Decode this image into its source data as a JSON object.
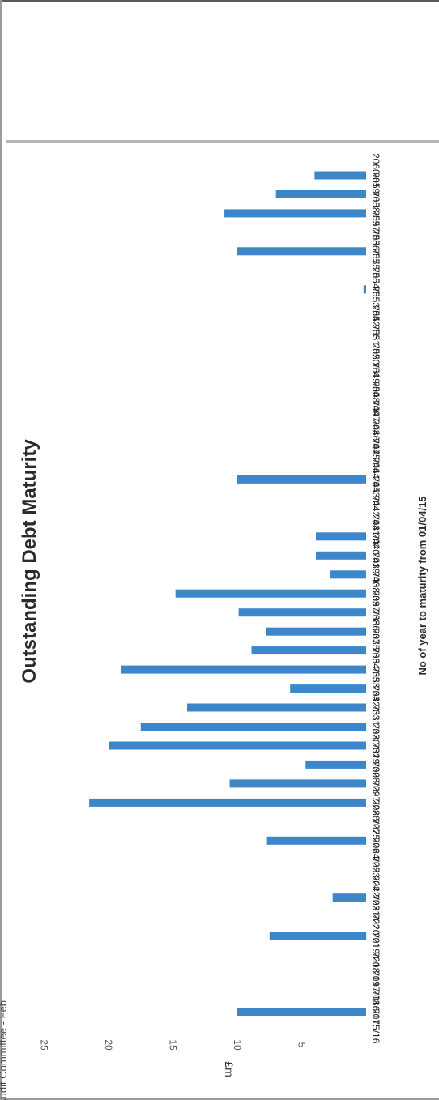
{
  "header_fragment": "Audit Committee - Feb",
  "chart_data": {
    "type": "bar",
    "orientation": "rotated 90 degrees clockwise",
    "title": "Outstanding Debt Maturity",
    "xlabel": "No of year to maturity from 01/04/15",
    "ylabel": "£m",
    "ylim": [
      0,
      25
    ],
    "yticks": [
      "5",
      "10",
      "15",
      "20",
      "25"
    ],
    "categories": [
      "2015/16",
      "2016/17",
      "2017/18",
      "2018/19",
      "2019/20",
      "2020/21",
      "2021/22",
      "2022/23",
      "2023/24",
      "2024/25",
      "2025/26",
      "2026/27",
      "2027/28",
      "2028/29",
      "2029/30",
      "2030/31",
      "2031/32",
      "2032/33",
      "2033/34",
      "2034/35",
      "2035/36",
      "2036/37",
      "2037/38",
      "2038/39",
      "2039/40",
      "2040/41",
      "2041/42",
      "2042/43",
      "2043/44",
      "2044/45",
      "2045/46",
      "2046/47",
      "2047/48",
      "2048/49",
      "2049/50",
      "2050/51",
      "2051/52",
      "2052/53",
      "2053/54",
      "2054/55",
      "2055/56",
      "2056/57",
      "2057/58",
      "2058/59",
      "2059/60",
      "2060/61"
    ],
    "values": [
      10,
      0,
      0,
      0,
      7.5,
      0,
      2.6,
      0,
      0,
      7.7,
      0,
      21.5,
      10.6,
      4.7,
      20.0,
      17.5,
      13.9,
      5.9,
      19.0,
      8.9,
      7.8,
      9.9,
      14.8,
      2.8,
      3.9,
      3.9,
      0,
      0,
      10.0,
      0,
      0,
      0,
      0,
      0,
      0,
      0,
      0,
      0,
      0.2,
      0,
      10.0,
      0,
      11.0,
      7.0,
      4.0,
      0
    ],
    "bar_color": "#3c87c9",
    "grid": false,
    "legend": "none"
  }
}
